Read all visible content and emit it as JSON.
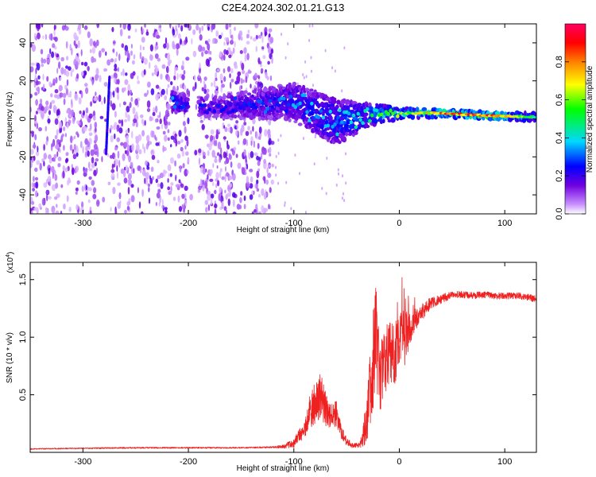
{
  "title": "C2E4.2024.302.01.21.G13",
  "chart_data": [
    {
      "type": "heatmap",
      "name": "spectrogram",
      "xlabel": "Height of straight line (km)",
      "ylabel": "Frequency (Hz)",
      "xlim": [
        -350,
        130
      ],
      "ylim": [
        -50,
        50
      ],
      "xticks": [
        -300,
        -200,
        -100,
        0,
        100
      ],
      "yticks": [
        -40,
        -20,
        0,
        20,
        40
      ],
      "colorbar": {
        "label": "Normalized spectral amplitude",
        "range": [
          0,
          1
        ],
        "ticks": [
          "0.0",
          "0.2",
          "0.4",
          "0.6",
          "0.8"
        ],
        "tick_values": [
          0.0,
          0.2,
          0.4,
          0.6,
          0.8
        ],
        "colors": [
          "#ffffff",
          "#c890ff",
          "#7000e0",
          "#0000ff",
          "#00d8ff",
          "#00ff00",
          "#ffff00",
          "#ff8000",
          "#ff0000",
          "#ff0060"
        ]
      },
      "features": {
        "noise_region_x": [
          -350,
          -120
        ],
        "gap_region_x": [
          -200,
          -190
        ],
        "vertical_streak": {
          "x": -278,
          "y_range": [
            -18,
            22
          ]
        },
        "signal_band": [
          {
            "x": -215,
            "f": 9,
            "spread": 6,
            "amp": 0.35
          },
          {
            "x": -180,
            "f": 6,
            "spread": 5,
            "amp": 0.25
          },
          {
            "x": -100,
            "f": 9,
            "spread": 10,
            "amp": 0.35
          },
          {
            "x": -60,
            "f": -2,
            "spread": 12,
            "amp": 0.45
          },
          {
            "x": -30,
            "f": 2,
            "spread": 6,
            "amp": 0.5
          },
          {
            "x": 0,
            "f": 3,
            "spread": 3,
            "amp": 0.65
          },
          {
            "x": 40,
            "f": 3,
            "spread": 2,
            "amp": 0.85
          },
          {
            "x": 90,
            "f": 1.5,
            "spread": 2,
            "amp": 0.95
          },
          {
            "x": 130,
            "f": 1,
            "spread": 2,
            "amp": 0.5
          }
        ]
      }
    },
    {
      "type": "line",
      "name": "snr",
      "xlabel": "Height of straight line (km)",
      "ylabel": "SNR (10 * v/v)",
      "y_multiplier": "(x10⁴)",
      "y_multiplier_base": "(x10",
      "y_multiplier_exp": "4",
      "y_multiplier_close": ")",
      "xlim": [
        -350,
        130
      ],
      "ylim": [
        0,
        1.65
      ],
      "xticks": [
        -300,
        -200,
        -100,
        0,
        100
      ],
      "yticks": [
        0.5,
        1.0,
        1.5
      ],
      "ytick_labels": [
        "0.5",
        "1.0",
        "1.5"
      ],
      "color": "#ee2020",
      "series": [
        {
          "x": [
            -350,
            -300,
            -250,
            -200,
            -150,
            -120,
            -110,
            -100,
            -90,
            -85,
            -80,
            -75,
            -70,
            -65,
            -60,
            -55,
            -50,
            -45,
            -40,
            -35,
            -30,
            -25,
            -22,
            -20,
            -18,
            -15,
            -10,
            -5,
            0,
            5,
            10,
            15,
            20,
            25,
            30,
            40,
            50,
            60,
            70,
            80,
            90,
            100,
            110,
            120,
            130
          ],
          "y": [
            0.03,
            0.035,
            0.04,
            0.04,
            0.04,
            0.045,
            0.05,
            0.08,
            0.2,
            0.35,
            0.45,
            0.5,
            0.38,
            0.3,
            0.35,
            0.18,
            0.1,
            0.06,
            0.06,
            0.1,
            0.35,
            0.75,
            1.0,
            0.7,
            0.65,
            0.75,
            0.9,
            0.85,
            0.95,
            1.0,
            1.05,
            1.15,
            1.2,
            1.25,
            1.3,
            1.33,
            1.37,
            1.37,
            1.36,
            1.37,
            1.36,
            1.36,
            1.36,
            1.35,
            1.33
          ],
          "noise": [
            0.005,
            0.005,
            0.006,
            0.006,
            0.006,
            0.007,
            0.015,
            0.04,
            0.08,
            0.15,
            0.2,
            0.2,
            0.15,
            0.12,
            0.12,
            0.06,
            0.04,
            0.02,
            0.02,
            0.06,
            0.25,
            0.45,
            0.55,
            0.45,
            0.35,
            0.3,
            0.3,
            0.3,
            0.25,
            0.25,
            0.15,
            0.1,
            0.08,
            0.06,
            0.05,
            0.04,
            0.03,
            0.03,
            0.03,
            0.03,
            0.03,
            0.03,
            0.03,
            0.03,
            0.03
          ]
        }
      ]
    }
  ]
}
